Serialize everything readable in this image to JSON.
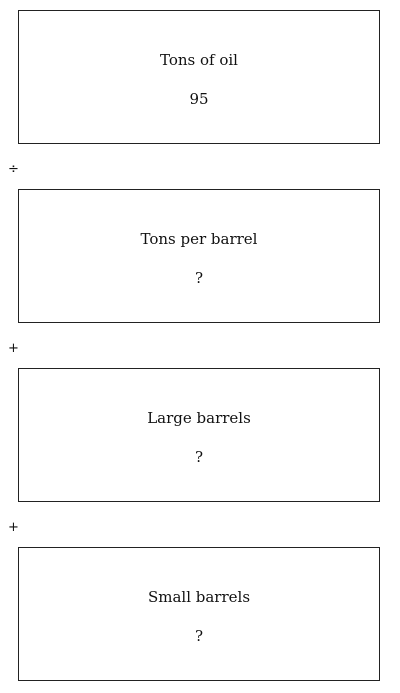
{
  "boxes": [
    {
      "label": "Tons of oil",
      "value": "95"
    },
    {
      "label": "Tons per barrel",
      "value": "?"
    },
    {
      "label": "Large barrels",
      "value": "?"
    },
    {
      "label": "Small barrels",
      "value": "?"
    }
  ],
  "operators": [
    "÷",
    "+",
    "+"
  ]
}
